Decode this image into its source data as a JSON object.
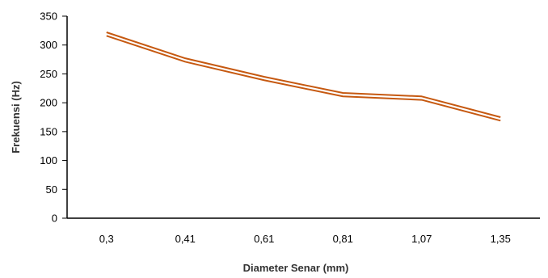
{
  "chart_data": {
    "type": "line",
    "title": "",
    "xlabel": "Diameter Senar (mm)",
    "ylabel": "Frekuensi (Hz)",
    "categories": [
      "0,3",
      "0,41",
      "0,61",
      "0,81",
      "1,07",
      "1,35"
    ],
    "series": [
      {
        "values": [
          322,
          277,
          245,
          217,
          211,
          175
        ]
      },
      {
        "values": [
          316,
          271,
          239,
          211,
          205,
          169
        ]
      }
    ],
    "ylim": [
      0,
      350
    ],
    "yticks": [
      "0",
      "50",
      "100",
      "150",
      "200",
      "250",
      "300",
      "350"
    ],
    "grid": false,
    "legend": "none",
    "colors": {
      "series": "#c65911",
      "axis": "#000000"
    }
  }
}
